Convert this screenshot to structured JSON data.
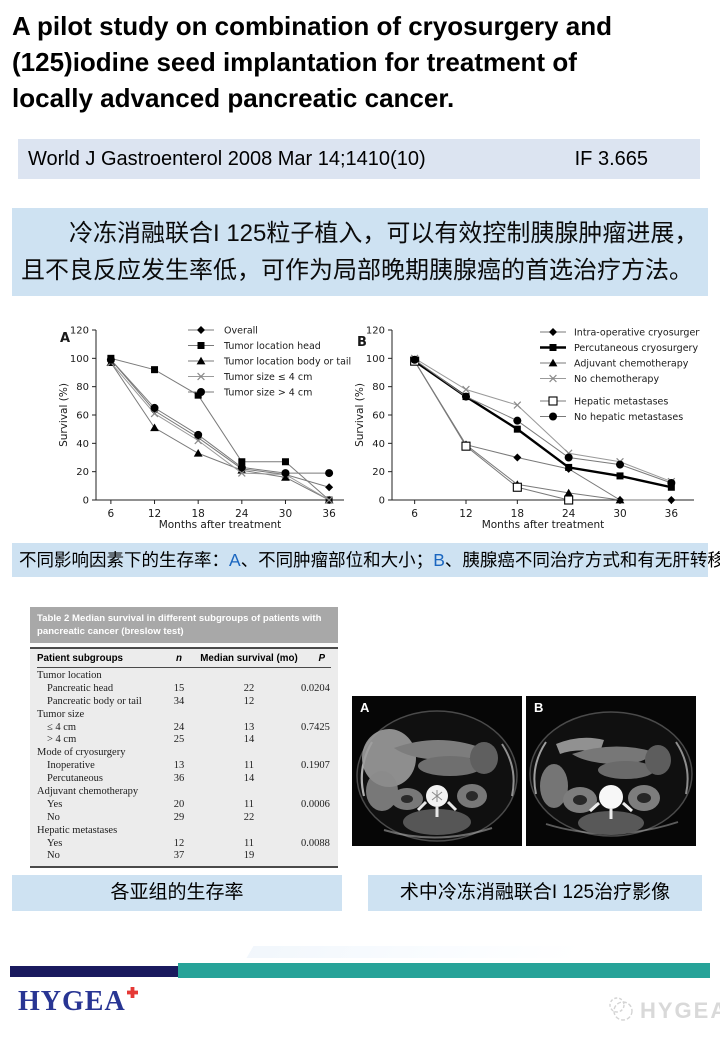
{
  "slide": {
    "title_lines": [
      "A pilot study on combination of cryosurgery and",
      "(125)iodine seed implantation for treatment of",
      "locally advanced pancreatic cancer."
    ]
  },
  "journal_bar": {
    "citation": "World J Gastroenterol 2008 Mar 14;1410(10)",
    "impact_factor": "IF 3.665"
  },
  "abstract_cn": {
    "lines": [
      "冷冻消融联合I 125粒子植入，可以有效控制胰腺肿瘤进展，",
      "且不良反应发生率低，可作为局部晚期胰腺癌的首选治疗方法。"
    ]
  },
  "figure_caption": {
    "prefix": "不同影响因素下的生存率：",
    "label_a": "A",
    "text_a": "、不同肿瘤部位和大小；",
    "label_b": "B",
    "text_b": "、胰腺癌不同治疗方式和有无肝转移。"
  },
  "chart_data": [
    {
      "type": "line",
      "panel_label": "A",
      "x": [
        6,
        12,
        18,
        24,
        30,
        36
      ],
      "xlabel": "Months after treatment",
      "ylabel": "Survival (%)",
      "ylim": [
        0,
        120
      ],
      "yticks": [
        0,
        20,
        40,
        60,
        80,
        100,
        120
      ],
      "legend_position": "top-right",
      "grid": false,
      "series": [
        {
          "name": "Overall",
          "marker": "diamond",
          "values": [
            99,
            63,
            44,
            22,
            18,
            9
          ]
        },
        {
          "name": "Tumor location head",
          "marker": "square",
          "values": [
            100,
            92,
            74,
            27,
            27,
            0
          ]
        },
        {
          "name": "Tumor location body or tail",
          "marker": "triangle",
          "values": [
            97,
            51,
            33,
            21,
            16,
            0
          ]
        },
        {
          "name": "Tumor size ≤ 4 cm",
          "marker": "x",
          "values": [
            97,
            61,
            42,
            19,
            18,
            0
          ]
        },
        {
          "name": "Tumor size > 4 cm",
          "marker": "circle",
          "values": [
            99,
            65,
            46,
            23,
            19,
            19
          ]
        }
      ]
    },
    {
      "type": "line",
      "panel_label": "B",
      "x": [
        6,
        12,
        18,
        24,
        30,
        36
      ],
      "xlabel": "Months after treatment",
      "ylabel": "Survival (%)",
      "ylim": [
        0,
        120
      ],
      "yticks": [
        0,
        20,
        40,
        60,
        80,
        100,
        120
      ],
      "legend_position": "top-right",
      "grid": false,
      "series": [
        {
          "name": "Intra-operative cryosurgery",
          "marker": "diamond",
          "values": [
            98,
            39,
            30,
            22,
            0,
            0
          ]
        },
        {
          "name": "Percutaneous cryosurgery",
          "marker": "square",
          "thick": true,
          "values": [
            98,
            73,
            50,
            23,
            17,
            9
          ]
        },
        {
          "name": "Adjuvant chemotherapy",
          "marker": "triangle",
          "values": [
            98,
            39,
            11,
            5,
            0,
            null
          ]
        },
        {
          "name": "No chemotherapy",
          "marker": "x",
          "values": [
            100,
            78,
            67,
            33,
            27,
            13
          ]
        },
        {
          "name": "Hepatic metastases",
          "marker": "open-square",
          "legend_gap_before": true,
          "values": [
            98,
            38,
            9,
            0,
            null,
            null
          ]
        },
        {
          "name": "No hepatic metastases",
          "marker": "circle",
          "values": [
            99,
            73,
            56,
            30,
            25,
            12
          ]
        }
      ]
    }
  ],
  "table": {
    "title": "Table 2  Median survival in different subgroups of patients with pancreatic cancer (breslow test)",
    "columns": [
      "Patient subgroups",
      "n",
      "Median survival (mo)",
      "P"
    ],
    "rows": [
      {
        "label": "Tumor location",
        "group": true,
        "n": "",
        "median": "",
        "p": ""
      },
      {
        "label": "Pancreatic head",
        "n": "15",
        "median": "22",
        "p": "0.0204"
      },
      {
        "label": "Pancreatic body or tail",
        "n": "34",
        "median": "12",
        "p": ""
      },
      {
        "label": "Tumor size",
        "group": true,
        "n": "",
        "median": "",
        "p": ""
      },
      {
        "label": "≤ 4 cm",
        "n": "24",
        "median": "13",
        "p": "0.7425"
      },
      {
        "label": "> 4 cm",
        "n": "25",
        "median": "14",
        "p": ""
      },
      {
        "label": "Mode of cryosurgery",
        "group": true,
        "n": "",
        "median": "",
        "p": ""
      },
      {
        "label": "Inoperative",
        "n": "13",
        "median": "11",
        "p": "0.1907"
      },
      {
        "label": "Percutaneous",
        "n": "36",
        "median": "14",
        "p": ""
      },
      {
        "label": "Adjuvant chemotherapy",
        "group": true,
        "n": "",
        "median": "",
        "p": ""
      },
      {
        "label": "Yes",
        "n": "20",
        "median": "11",
        "p": "0.0006"
      },
      {
        "label": "No",
        "n": "29",
        "median": "22",
        "p": ""
      },
      {
        "label": "Hepatic metastases",
        "group": true,
        "n": "",
        "median": "",
        "p": ""
      },
      {
        "label": "Yes",
        "n": "12",
        "median": "11",
        "p": "0.0088"
      },
      {
        "label": "No",
        "n": "37",
        "median": "19",
        "p": ""
      }
    ]
  },
  "ct_figure": {
    "label_a": "A",
    "label_b": "B"
  },
  "bottom_captions": {
    "left": "各亚组的生存率",
    "right": "术中冷冻消融联合I 125治疗影像"
  },
  "footer": {
    "logo_text": "HYGEA",
    "watermark_text": "HYGEA"
  },
  "colors": {
    "journal_bar_bg": "#dce4f1",
    "abstract_bg": "#cee2f2",
    "caption_bg": "#cee2f2",
    "caption_ab_blue": "#1a66c0",
    "table_band_bg": "#a8a8a8",
    "navy_bar": "#1a1a5e",
    "teal_bar": "#27a399",
    "logo_navy": "#283593",
    "logo_red": "#e53935"
  }
}
